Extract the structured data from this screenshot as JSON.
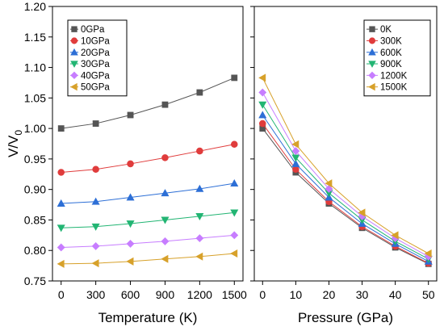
{
  "chart_data": [
    {
      "type": "line",
      "panel": "left",
      "xlabel": "Temperature (K)",
      "ylabel": "V/V",
      "ylabel_subscript": "0",
      "x": [
        0,
        300,
        600,
        900,
        1200,
        1500
      ],
      "xlim": [
        -75,
        1575
      ],
      "ylim": [
        0.75,
        1.2
      ],
      "xticks": [
        0,
        300,
        600,
        900,
        1200,
        1500
      ],
      "xtick_labels": [
        "0",
        "300",
        "600",
        "900",
        "1200",
        "1500"
      ],
      "yticks": [
        0.75,
        0.8,
        0.85,
        0.9,
        0.95,
        1.0,
        1.05,
        1.1,
        1.15,
        1.2
      ],
      "ytick_labels": [
        "0.75",
        "0.80",
        "0.85",
        "0.90",
        "0.95",
        "1.00",
        "1.05",
        "1.10",
        "1.15",
        "1.20"
      ],
      "grid": false,
      "legend_position": "top-left",
      "series": [
        {
          "name": "0GPa",
          "color": "#555555",
          "marker": "square",
          "values": [
            1.0,
            1.008,
            1.022,
            1.039,
            1.059,
            1.083
          ]
        },
        {
          "name": "10GPa",
          "color": "#e03c3c",
          "marker": "circle",
          "values": [
            0.928,
            0.933,
            0.942,
            0.952,
            0.963,
            0.974
          ]
        },
        {
          "name": "20GPa",
          "color": "#2d6fd6",
          "marker": "triangle-up",
          "values": [
            0.877,
            0.88,
            0.887,
            0.894,
            0.901,
            0.91
          ]
        },
        {
          "name": "30GPa",
          "color": "#22b573",
          "marker": "triangle-down",
          "values": [
            0.837,
            0.839,
            0.844,
            0.85,
            0.856,
            0.862
          ]
        },
        {
          "name": "40GPa",
          "color": "#c77dff",
          "marker": "diamond",
          "values": [
            0.805,
            0.807,
            0.811,
            0.815,
            0.82,
            0.825
          ]
        },
        {
          "name": "50GPa",
          "color": "#d7a12a",
          "marker": "triangle-left",
          "values": [
            0.778,
            0.779,
            0.782,
            0.786,
            0.79,
            0.795
          ]
        }
      ]
    },
    {
      "type": "line",
      "panel": "right",
      "xlabel": "Pressure (GPa)",
      "x": [
        0,
        10,
        20,
        30,
        40,
        50
      ],
      "xlim": [
        -2.5,
        52.5
      ],
      "ylim": [
        0.75,
        1.2
      ],
      "xticks": [
        0,
        10,
        20,
        30,
        40,
        50
      ],
      "xtick_labels": [
        "0",
        "10",
        "20",
        "30",
        "40",
        "50"
      ],
      "grid": false,
      "legend_position": "top-right",
      "series": [
        {
          "name": "0K",
          "color": "#555555",
          "marker": "square",
          "values": [
            1.0,
            0.928,
            0.877,
            0.837,
            0.805,
            0.778
          ]
        },
        {
          "name": "300K",
          "color": "#e03c3c",
          "marker": "circle",
          "values": [
            1.008,
            0.933,
            0.88,
            0.839,
            0.807,
            0.779
          ]
        },
        {
          "name": "600K",
          "color": "#2d6fd6",
          "marker": "triangle-up",
          "values": [
            1.022,
            0.942,
            0.887,
            0.844,
            0.811,
            0.782
          ]
        },
        {
          "name": "900K",
          "color": "#22b573",
          "marker": "triangle-down",
          "values": [
            1.039,
            0.952,
            0.894,
            0.85,
            0.815,
            0.786
          ]
        },
        {
          "name": "1200K",
          "color": "#c77dff",
          "marker": "diamond",
          "values": [
            1.059,
            0.963,
            0.901,
            0.856,
            0.82,
            0.79
          ]
        },
        {
          "name": "1500K",
          "color": "#d7a12a",
          "marker": "triangle-left",
          "values": [
            1.083,
            0.974,
            0.91,
            0.862,
            0.825,
            0.795
          ]
        }
      ]
    }
  ]
}
